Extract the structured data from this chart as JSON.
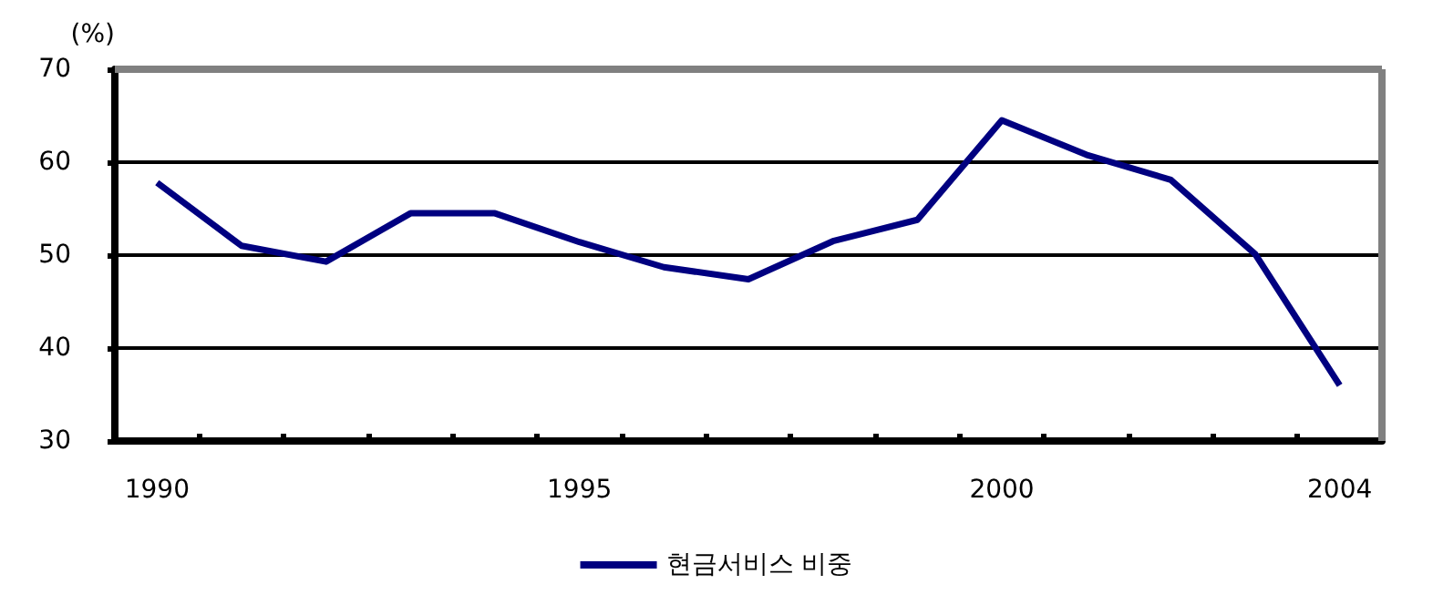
{
  "chart_data": {
    "type": "line",
    "ylabel": "(%)",
    "categories": [
      "1990",
      null,
      null,
      null,
      null,
      "1995",
      null,
      null,
      null,
      null,
      "2000",
      null,
      null,
      null,
      "2004"
    ],
    "series": [
      {
        "name": "현금서비스 비중",
        "color": "#000080",
        "values": [
          57.8,
          51.0,
          49.3,
          54.5,
          54.5,
          51.4,
          48.7,
          47.4,
          51.5,
          53.8,
          64.5,
          60.8,
          58.1,
          50.1,
          36.0
        ]
      }
    ],
    "ylim": [
      30,
      70
    ],
    "yticks": [
      30,
      40,
      50,
      60,
      70
    ],
    "grid": "y",
    "legend": "bottom",
    "marker": "none",
    "line_style": "solid"
  }
}
